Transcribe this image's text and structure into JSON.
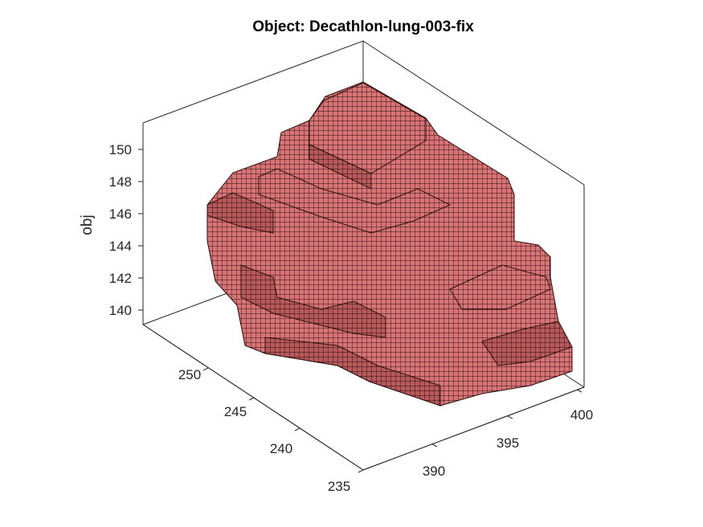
{
  "title": "Object: Decathlon-lung-003-fix",
  "z_axis": {
    "label": "obj",
    "ticks": [
      "140",
      "142",
      "144",
      "146",
      "148",
      "150"
    ]
  },
  "y_axis": {
    "label": "",
    "ticks": [
      "250",
      "245",
      "240",
      "235"
    ]
  },
  "x_axis": {
    "label": "",
    "ticks": [
      "390",
      "395",
      "400"
    ]
  },
  "colors": {
    "voxel_face": "#d97476",
    "voxel_edge": "#2a0e0e",
    "background": "#ffffff",
    "axis": "#262626"
  }
}
